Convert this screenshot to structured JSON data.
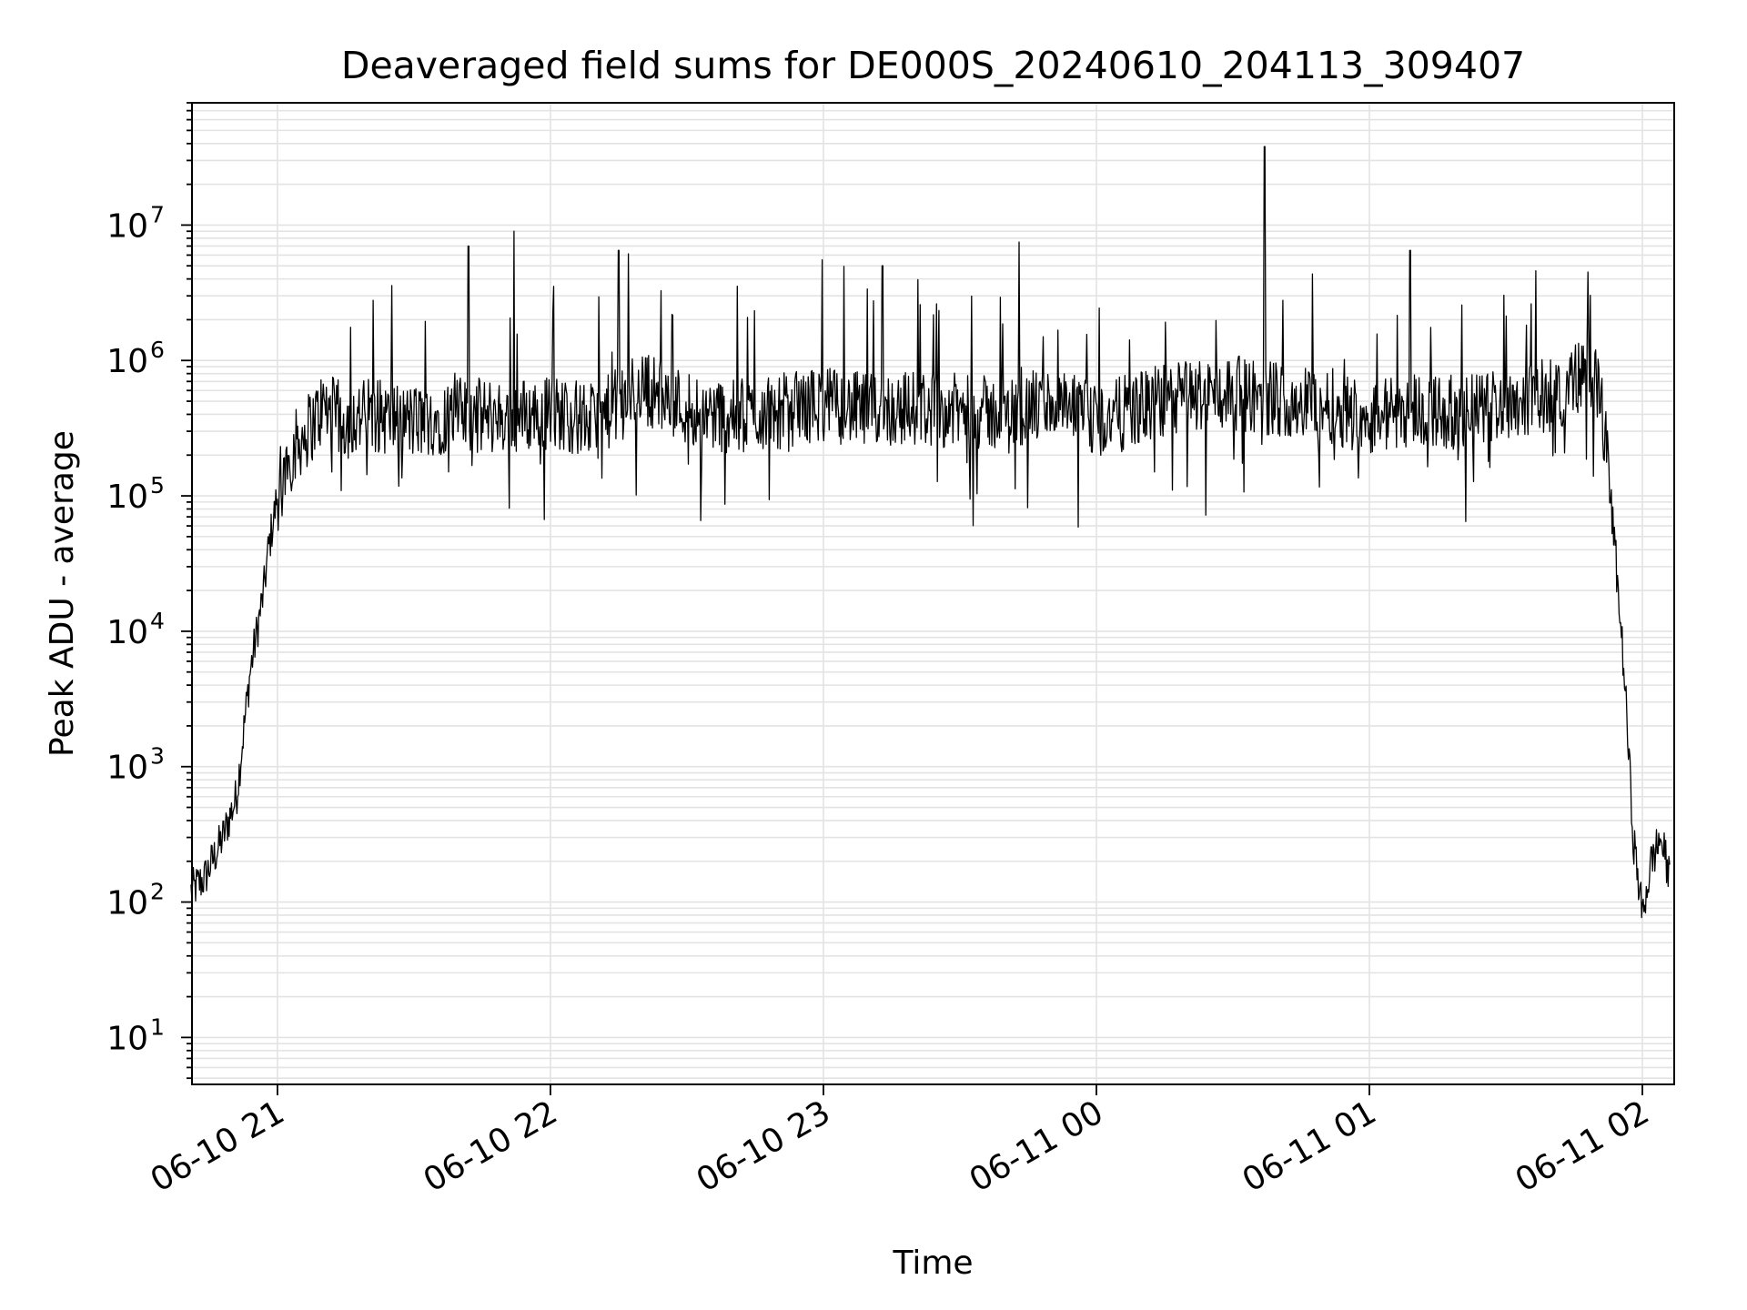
{
  "chart_data": {
    "type": "line",
    "title": "Deaveraged field sums for DE000S_20240610_204113_309407",
    "xlabel": "Time",
    "ylabel": "Peak ADU - average",
    "yscale": "log",
    "ylim": [
      4.5,
      80000000
    ],
    "xlim": [
      "2024-06-10 20:41:13",
      "2024-06-11 02:07:00"
    ],
    "grid": "both (major and minor)",
    "x_tick_labels": [
      "06-10 21",
      "06-10 22",
      "06-10 23",
      "06-11 00",
      "06-11 01",
      "06-11 02"
    ],
    "x_ticks": [
      "2024-06-10 21:00",
      "2024-06-10 22:00",
      "2024-06-10 23:00",
      "2024-06-11 00:00",
      "2024-06-11 01:00",
      "2024-06-11 02:00"
    ],
    "y_ticks": [
      10,
      100,
      1000,
      10000,
      100000,
      1000000,
      10000000
    ],
    "y_tick_labels": [
      {
        "base": "10",
        "exp": "1"
      },
      {
        "base": "10",
        "exp": "2"
      },
      {
        "base": "10",
        "exp": "3"
      },
      {
        "base": "10",
        "exp": "4"
      },
      {
        "base": "10",
        "exp": "5"
      },
      {
        "base": "10",
        "exp": "6"
      },
      {
        "base": "10",
        "exp": "7"
      }
    ],
    "series": [
      {
        "color": "#000000",
        "x": [
          "2024-06-10 20:41",
          "2024-06-10 20:44",
          "2024-06-10 20:48",
          "2024-06-10 20:51",
          "2024-06-10 20:54",
          "2024-06-10 20:57",
          "2024-06-10 20:58",
          "2024-06-10 21:00",
          "2024-06-10 21:02",
          "2024-06-10 21:05",
          "2024-06-10 21:08",
          "2024-06-10 21:10",
          "2024-06-10 21:15",
          "2024-06-10 21:20",
          "2024-06-10 21:30",
          "2024-06-10 21:40",
          "2024-06-10 21:50",
          "2024-06-10 22:00",
          "2024-06-10 22:10",
          "2024-06-10 22:20",
          "2024-06-10 22:30",
          "2024-06-10 22:40",
          "2024-06-10 22:50",
          "2024-06-10 23:00",
          "2024-06-10 23:10",
          "2024-06-10 23:20",
          "2024-06-10 23:30",
          "2024-06-10 23:40",
          "2024-06-10 23:50",
          "2024-06-11 00:00",
          "2024-06-11 00:10",
          "2024-06-11 00:20",
          "2024-06-11 00:30",
          "2024-06-11 00:40",
          "2024-06-11 00:50",
          "2024-06-11 01:00",
          "2024-06-11 01:10",
          "2024-06-11 01:20",
          "2024-06-11 01:30",
          "2024-06-11 01:40",
          "2024-06-11 01:45",
          "2024-06-11 01:48",
          "2024-06-11 01:51",
          "2024-06-11 01:54",
          "2024-06-11 01:56",
          "2024-06-11 01:58",
          "2024-06-11 02:00",
          "2024-06-11 02:02",
          "2024-06-11 02:04",
          "2024-06-11 02:06"
        ],
        "y": [
          120,
          150,
          300,
          600,
          5000,
          20000,
          40000,
          100000,
          180000,
          260000,
          350000,
          450000,
          350000,
          400000,
          350000,
          400000,
          380000,
          420000,
          350000,
          650000,
          450000,
          380000,
          420000,
          480000,
          420000,
          450000,
          420000,
          400000,
          480000,
          350000,
          450000,
          550000,
          580000,
          520000,
          480000,
          380000,
          450000,
          400000,
          500000,
          550000,
          700000,
          900000,
          500000,
          40000,
          5000,
          300,
          80,
          200,
          300,
          150
        ]
      }
    ],
    "spikes": [
      {
        "x": "2024-06-10 21:42",
        "y": 7000000
      },
      {
        "x": "2024-06-10 21:52",
        "y": 9000000
      },
      {
        "x": "2024-06-10 22:15",
        "y": 6500000
      },
      {
        "x": "2024-06-10 23:13",
        "y": 5000000
      },
      {
        "x": "2024-06-10 23:43",
        "y": 7500000
      },
      {
        "x": "2024-06-11 00:37",
        "y": 38000000
      },
      {
        "x": "2024-06-11 01:09",
        "y": 6500000
      }
    ]
  }
}
